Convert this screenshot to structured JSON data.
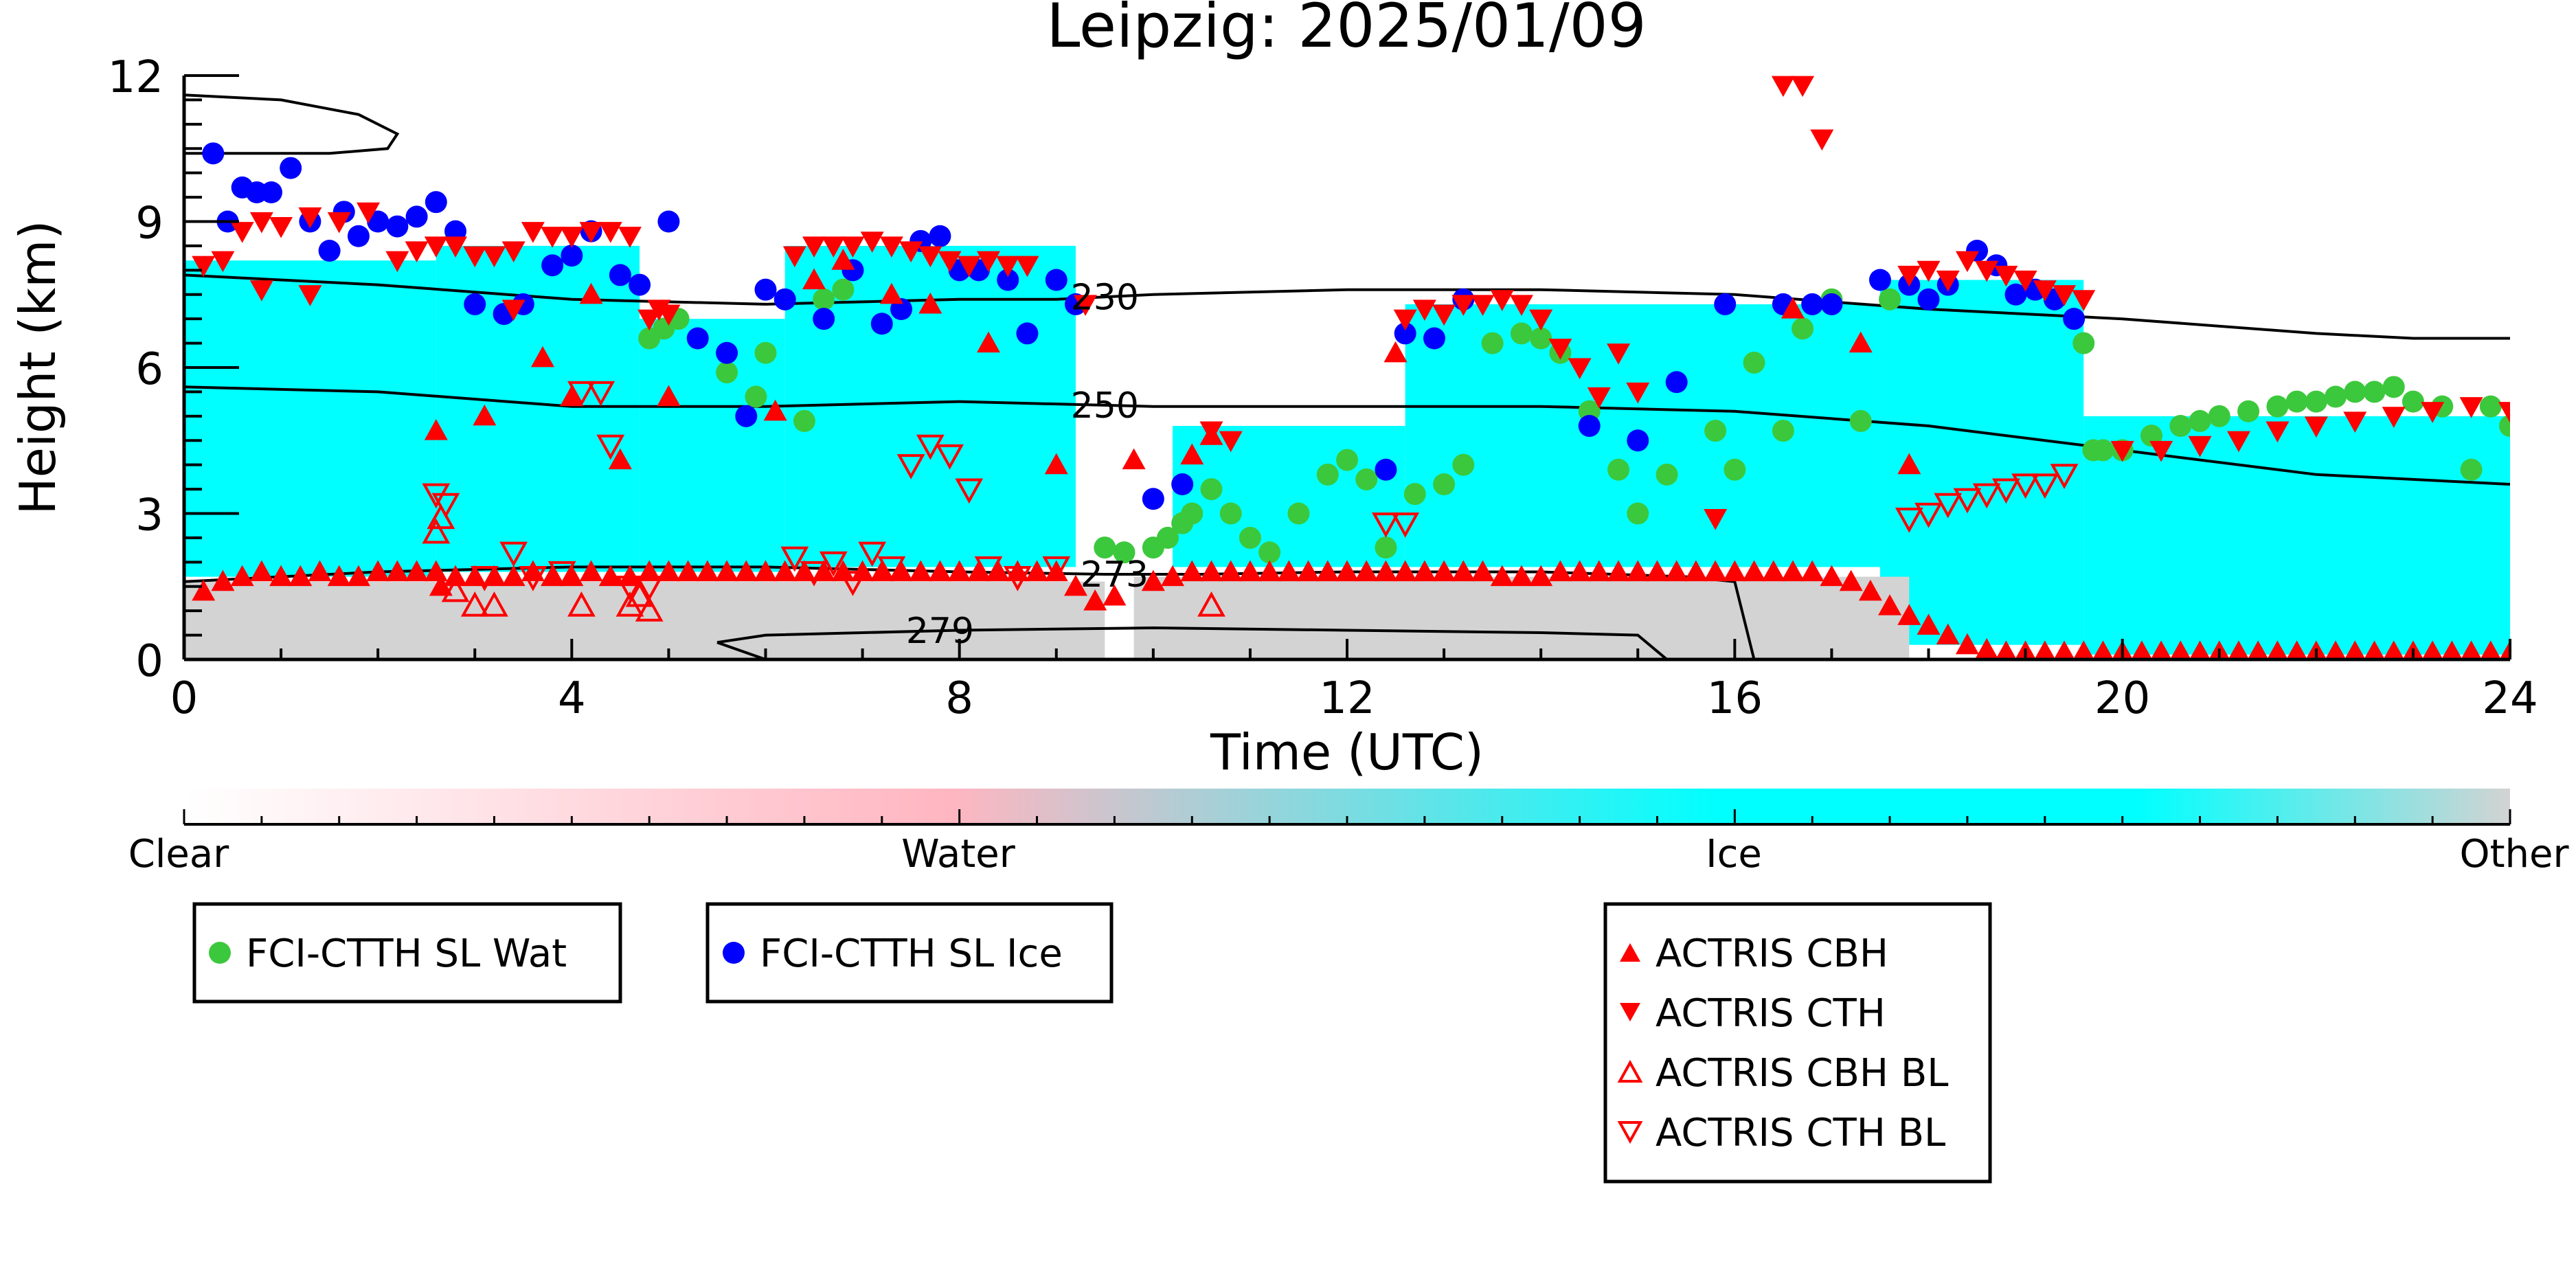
{
  "chart_data": {
    "type": "scatter",
    "title": "Leipzig: 2025/01/09",
    "xlabel": "Time (UTC)",
    "ylabel": "Height (km)",
    "xlim": [
      0,
      24
    ],
    "ylim": [
      0,
      12
    ],
    "xticks": [
      "0",
      "4",
      "8",
      "12",
      "16",
      "20",
      "24"
    ],
    "yticks": [
      "0",
      "3",
      "6",
      "9",
      "12"
    ],
    "grid": false,
    "colorbar": {
      "labels": [
        "Clear",
        "Water",
        "Ice",
        "Other"
      ],
      "colors": [
        "#ffffff",
        "#ffb6c1",
        "#00ffff",
        "#d3d3d3"
      ]
    },
    "background_classification": {
      "description_colors": {
        "water": "#ffb6c1",
        "ice": "#00ffff",
        "other": "#d3d3d3"
      },
      "ice_regions": [
        {
          "t0": 0.0,
          "t1": 2.6,
          "bottom": 1.7,
          "top": 8.2
        },
        {
          "t0": 2.6,
          "t1": 4.7,
          "bottom": 1.8,
          "top": 8.5
        },
        {
          "t0": 4.7,
          "t1": 6.2,
          "bottom": 1.8,
          "top": 7.0
        },
        {
          "t0": 6.2,
          "t1": 9.2,
          "bottom": 1.9,
          "top": 8.5
        },
        {
          "t0": 10.2,
          "t1": 12.6,
          "bottom": 1.9,
          "top": 4.8
        },
        {
          "t0": 12.6,
          "t1": 17.5,
          "bottom": 1.9,
          "top": 7.3
        },
        {
          "t0": 17.5,
          "t1": 19.6,
          "bottom": 0.3,
          "top": 7.8
        },
        {
          "t0": 19.6,
          "t1": 24.0,
          "bottom": 0.1,
          "top": 5.0
        }
      ],
      "other_regions": [
        {
          "t0": 0.0,
          "t1": 9.5,
          "bottom": 0.0,
          "top": 1.6
        },
        {
          "t0": 9.8,
          "t1": 17.8,
          "bottom": 0.0,
          "top": 1.7
        }
      ]
    },
    "contours": [
      {
        "label": "230",
        "x": [
          0.0,
          2,
          4,
          6,
          8,
          9,
          10,
          12,
          14,
          16,
          18,
          20,
          22,
          23,
          24
        ],
        "y": [
          7.9,
          7.7,
          7.4,
          7.3,
          7.4,
          7.4,
          7.5,
          7.6,
          7.6,
          7.5,
          7.2,
          7.0,
          6.7,
          6.6,
          6.6
        ]
      },
      {
        "label": "250",
        "x": [
          0.0,
          2,
          4,
          6,
          8,
          10,
          12,
          14,
          16,
          18,
          20,
          22,
          24
        ],
        "y": [
          5.6,
          5.5,
          5.2,
          5.2,
          5.3,
          5.2,
          5.2,
          5.2,
          5.1,
          4.8,
          4.3,
          3.8,
          3.6
        ]
      },
      {
        "label": "273",
        "x": [
          0.0,
          2,
          4,
          6,
          8,
          9.5,
          10.5,
          12,
          14,
          15.5,
          16.0,
          16.1,
          16.2
        ],
        "y": [
          1.6,
          1.8,
          1.9,
          1.9,
          1.8,
          1.75,
          1.75,
          1.8,
          1.8,
          1.7,
          1.6,
          0.8,
          0.0
        ]
      },
      {
        "label": "279",
        "x": [
          5.5,
          6,
          8,
          10,
          12,
          14,
          15.0,
          15.3,
          15.2,
          14,
          12,
          10,
          8,
          6,
          5.5
        ],
        "y": [
          0.35,
          0.5,
          0.6,
          0.65,
          0.6,
          0.55,
          0.5,
          0.0,
          0.0,
          0.0,
          0.0,
          0.0,
          0.0,
          0.0,
          0.35
        ]
      },
      {
        "label": "",
        "x": [
          0.0,
          1.0,
          1.8,
          2.2,
          2.1,
          1.5,
          0.8,
          0.0
        ],
        "y": [
          11.6,
          11.5,
          11.2,
          10.8,
          10.5,
          10.4,
          10.4,
          10.4
        ]
      }
    ],
    "series": [
      {
        "name": "FCI-CTTH SL Wat",
        "marker": "circle",
        "color": "#3cc83c",
        "x": [
          4.8,
          4.95,
          5.1,
          5.6,
          5.9,
          6.0,
          6.4,
          6.6,
          6.8,
          9.5,
          9.7,
          10.0,
          10.15,
          10.3,
          10.4,
          10.6,
          10.8,
          11.0,
          11.2,
          11.5,
          11.8,
          12.0,
          12.2,
          12.4,
          12.7,
          13.0,
          13.2,
          13.5,
          13.8,
          14.0,
          14.2,
          14.5,
          14.8,
          15.0,
          15.3,
          15.8,
          16.0,
          16.2,
          16.5,
          16.7,
          17.0,
          17.3,
          17.6,
          19.6,
          19.7,
          19.8,
          20.0,
          20.3,
          20.6,
          20.8,
          21.0,
          21.3,
          21.6,
          21.8,
          22.0,
          22.2,
          22.4,
          22.6,
          22.8,
          23.0,
          23.3,
          23.6,
          23.8,
          24.0
        ],
        "y": [
          6.6,
          6.8,
          7.0,
          5.9,
          5.4,
          6.3,
          4.9,
          7.4,
          7.6,
          2.3,
          2.2,
          2.3,
          2.5,
          2.8,
          3.0,
          3.5,
          3.0,
          2.5,
          2.2,
          3.0,
          3.8,
          4.1,
          3.7,
          2.3,
          3.4,
          3.6,
          4.0,
          6.5,
          6.7,
          6.6,
          6.3,
          5.1,
          3.9,
          3.0,
          3.8,
          4.7,
          3.9,
          6.1,
          4.7,
          6.8,
          7.4,
          4.9,
          7.4,
          6.5,
          4.3,
          4.3,
          4.3,
          4.6,
          4.8,
          4.9,
          5.0,
          5.1,
          5.2,
          5.3,
          5.3,
          5.4,
          5.5,
          5.5,
          5.6,
          5.3,
          5.2,
          3.9,
          5.2,
          4.8
        ]
      },
      {
        "name": "FCI-CTTH SL Ice",
        "marker": "circle",
        "color": "#0000ff",
        "x": [
          0.3,
          0.45,
          0.6,
          0.75,
          0.9,
          1.1,
          1.3,
          1.5,
          1.65,
          1.8,
          2.0,
          2.2,
          2.4,
          2.6,
          2.8,
          3.0,
          3.3,
          3.5,
          3.8,
          4.0,
          4.2,
          4.5,
          4.7,
          5.0,
          5.3,
          5.6,
          5.8,
          6.0,
          6.2,
          6.6,
          6.9,
          7.2,
          7.4,
          7.6,
          7.8,
          8.0,
          8.2,
          8.5,
          8.7,
          9.0,
          9.2,
          10.0,
          10.3,
          12.4,
          12.6,
          12.9,
          13.2,
          14.5,
          15.0,
          15.4,
          15.9,
          16.5,
          16.8,
          17.0,
          17.5,
          17.8,
          18.0,
          18.2,
          18.5,
          18.7,
          18.9,
          19.1,
          19.3,
          19.5
        ],
        "y": [
          10.4,
          9.0,
          9.7,
          9.6,
          9.6,
          10.1,
          9.0,
          8.4,
          9.2,
          8.7,
          9.0,
          8.9,
          9.1,
          9.4,
          8.8,
          7.3,
          7.1,
          7.3,
          8.1,
          8.3,
          8.8,
          7.9,
          7.7,
          9.0,
          6.6,
          6.3,
          5.0,
          7.6,
          7.4,
          7.0,
          8.0,
          6.9,
          7.2,
          8.6,
          8.7,
          8.0,
          8.0,
          7.8,
          6.7,
          7.8,
          7.3,
          3.3,
          3.6,
          3.9,
          6.7,
          6.6,
          7.4,
          4.8,
          4.5,
          5.7,
          7.3,
          7.3,
          7.3,
          7.3,
          7.8,
          7.7,
          7.4,
          7.7,
          8.4,
          8.1,
          7.5,
          7.6,
          7.4,
          7.0
        ]
      },
      {
        "name": "ACTRIS CBH",
        "marker": "triangle-up",
        "color": "#ff0000",
        "filled": true,
        "x": [
          0.2,
          0.4,
          0.6,
          0.8,
          1.0,
          1.2,
          1.4,
          1.6,
          1.8,
          2.0,
          2.2,
          2.4,
          2.6,
          2.65,
          2.8,
          3.0,
          3.2,
          3.4,
          3.6,
          3.8,
          4.0,
          4.2,
          4.4,
          4.6,
          4.8,
          5.0,
          5.2,
          5.4,
          5.6,
          5.8,
          6.0,
          6.2,
          6.4,
          6.6,
          6.8,
          7.0,
          7.2,
          7.4,
          7.6,
          7.8,
          8.0,
          8.2,
          8.4,
          8.6,
          8.8,
          9.0,
          9.2,
          9.4,
          9.6,
          10.0,
          10.2,
          10.4,
          10.6,
          10.8,
          11.0,
          11.2,
          11.4,
          11.6,
          11.8,
          12.0,
          12.2,
          12.4,
          12.6,
          12.8,
          13.0,
          13.2,
          13.4,
          13.6,
          13.8,
          14.0,
          14.2,
          14.4,
          14.6,
          14.8,
          15.0,
          15.2,
          15.4,
          15.6,
          15.8,
          16.0,
          16.2,
          16.4,
          16.6,
          16.8,
          17.0,
          17.2,
          17.4,
          17.6,
          17.8,
          18.0,
          18.2,
          18.4,
          18.6,
          18.8,
          19.0,
          19.2,
          19.4,
          19.6,
          19.8,
          20.0,
          20.2,
          20.4,
          20.6,
          20.8,
          21.0,
          21.2,
          21.4,
          21.6,
          21.8,
          22.0,
          22.2,
          22.4,
          22.6,
          22.8,
          23.0,
          23.2,
          23.4,
          23.6,
          23.8,
          24.0,
          2.6,
          3.1,
          3.7,
          4.0,
          4.2,
          4.5,
          5.0,
          6.1,
          6.5,
          6.8,
          7.3,
          7.7,
          8.3,
          9.0,
          9.8,
          10.4,
          10.6,
          12.5,
          16.6,
          17.3,
          17.8
        ],
        "y": [
          1.4,
          1.6,
          1.7,
          1.8,
          1.7,
          1.7,
          1.8,
          1.7,
          1.7,
          1.8,
          1.8,
          1.8,
          1.8,
          1.5,
          1.7,
          1.7,
          1.7,
          1.7,
          1.8,
          1.7,
          1.7,
          1.8,
          1.7,
          1.7,
          1.8,
          1.8,
          1.8,
          1.8,
          1.8,
          1.8,
          1.8,
          1.8,
          1.8,
          1.8,
          1.8,
          1.8,
          1.8,
          1.8,
          1.8,
          1.8,
          1.8,
          1.8,
          1.8,
          1.8,
          1.8,
          1.8,
          1.5,
          1.2,
          1.3,
          1.6,
          1.7,
          1.8,
          1.8,
          1.8,
          1.8,
          1.8,
          1.8,
          1.8,
          1.8,
          1.8,
          1.8,
          1.8,
          1.8,
          1.8,
          1.8,
          1.8,
          1.8,
          1.7,
          1.7,
          1.7,
          1.8,
          1.8,
          1.8,
          1.8,
          1.8,
          1.8,
          1.8,
          1.8,
          1.8,
          1.8,
          1.8,
          1.8,
          1.8,
          1.8,
          1.7,
          1.6,
          1.4,
          1.1,
          0.9,
          0.7,
          0.5,
          0.3,
          0.2,
          0.15,
          0.15,
          0.15,
          0.15,
          0.15,
          0.15,
          0.15,
          0.15,
          0.15,
          0.15,
          0.15,
          0.15,
          0.15,
          0.15,
          0.15,
          0.15,
          0.15,
          0.15,
          0.15,
          0.15,
          0.15,
          0.15,
          0.15,
          0.15,
          0.15,
          0.15,
          0.15,
          4.7,
          5.0,
          6.2,
          5.4,
          7.5,
          4.1,
          5.4,
          5.1,
          7.8,
          8.2,
          7.5,
          7.3,
          6.5,
          4.0,
          4.1,
          4.2,
          4.6,
          6.3,
          7.2,
          6.5,
          4.0
        ]
      },
      {
        "name": "ACTRIS CTH",
        "marker": "triangle-down",
        "color": "#ff0000",
        "filled": true,
        "x": [
          0.2,
          0.4,
          0.6,
          0.8,
          1.0,
          1.3,
          1.6,
          1.9,
          2.2,
          2.4,
          2.6,
          2.8,
          3.0,
          3.2,
          3.4,
          3.6,
          3.8,
          4.0,
          4.2,
          4.4,
          4.6,
          4.8,
          5.0,
          6.3,
          6.5,
          6.7,
          6.9,
          7.1,
          7.3,
          7.5,
          7.7,
          7.9,
          8.1,
          8.3,
          8.5,
          8.7,
          12.6,
          12.8,
          13.0,
          13.2,
          13.4,
          13.6,
          13.8,
          14.0,
          14.2,
          14.4,
          14.6,
          14.8,
          15.0,
          16.5,
          16.7,
          16.9,
          17.8,
          18.0,
          18.2,
          18.4,
          18.6,
          18.8,
          19.0,
          19.2,
          19.4,
          19.6,
          0.8,
          1.3,
          3.4,
          4.9,
          9.3,
          10.6,
          10.8,
          15.8,
          20.0,
          20.4,
          20.8,
          21.2,
          21.6,
          22.0,
          22.4,
          22.8,
          23.2,
          23.6,
          24.0
        ],
        "y": [
          8.1,
          8.2,
          8.8,
          9.0,
          8.9,
          9.1,
          9.0,
          9.2,
          8.2,
          8.4,
          8.5,
          8.5,
          8.3,
          8.3,
          8.4,
          8.8,
          8.7,
          8.7,
          8.8,
          8.8,
          8.7,
          7.0,
          7.1,
          8.3,
          8.5,
          8.5,
          8.5,
          8.6,
          8.5,
          8.4,
          8.3,
          8.2,
          8.1,
          8.2,
          8.1,
          8.1,
          7.0,
          7.2,
          7.1,
          7.3,
          7.3,
          7.4,
          7.3,
          7.0,
          6.4,
          6.0,
          5.4,
          6.3,
          5.5,
          11.8,
          11.8,
          10.7,
          7.9,
          8.0,
          7.8,
          8.2,
          8.0,
          7.9,
          7.8,
          7.6,
          7.5,
          7.4,
          7.6,
          7.5,
          7.2,
          7.2,
          7.3,
          4.7,
          4.5,
          2.9,
          4.3,
          4.3,
          4.4,
          4.5,
          4.7,
          4.8,
          4.9,
          5.0,
          5.1,
          5.2,
          5.1
        ]
      },
      {
        "name": "ACTRIS CBH BL",
        "marker": "triangle-up",
        "color": "#ff0000",
        "filled": false,
        "x": [
          2.6,
          2.65,
          2.8,
          3.0,
          3.2,
          4.1,
          4.6,
          4.7,
          4.8,
          10.6
        ],
        "y": [
          2.6,
          2.9,
          1.4,
          1.1,
          1.1,
          1.1,
          1.1,
          1.3,
          1.0,
          1.1
        ]
      },
      {
        "name": "ACTRIS CTH BL",
        "marker": "triangle-down",
        "color": "#ff0000",
        "filled": false,
        "x": [
          2.6,
          2.7,
          3.1,
          3.4,
          3.6,
          3.9,
          4.1,
          4.3,
          4.4,
          4.6,
          4.8,
          6.3,
          6.5,
          6.7,
          6.9,
          7.1,
          7.3,
          7.5,
          7.7,
          7.9,
          8.1,
          8.3,
          8.6,
          9.0,
          12.4,
          12.6,
          17.8,
          18.0,
          18.2,
          18.4,
          18.6,
          18.8,
          19.0,
          19.2,
          19.4
        ],
        "y": [
          3.4,
          3.2,
          1.7,
          2.2,
          1.7,
          1.8,
          5.5,
          5.5,
          4.4,
          1.5,
          1.5,
          2.1,
          1.8,
          2.0,
          1.6,
          2.2,
          1.9,
          4.0,
          4.4,
          4.2,
          3.5,
          1.9,
          1.7,
          1.9,
          2.8,
          2.8,
          2.9,
          3.0,
          3.2,
          3.3,
          3.4,
          3.5,
          3.6,
          3.6,
          3.8
        ]
      }
    ],
    "legends": [
      [
        "FCI-CTTH SL Wat"
      ],
      [
        "FCI-CTTH SL Ice"
      ],
      [
        "ACTRIS CBH",
        "ACTRIS CTH",
        "ACTRIS CBH BL",
        "ACTRIS CTH BL"
      ]
    ]
  }
}
